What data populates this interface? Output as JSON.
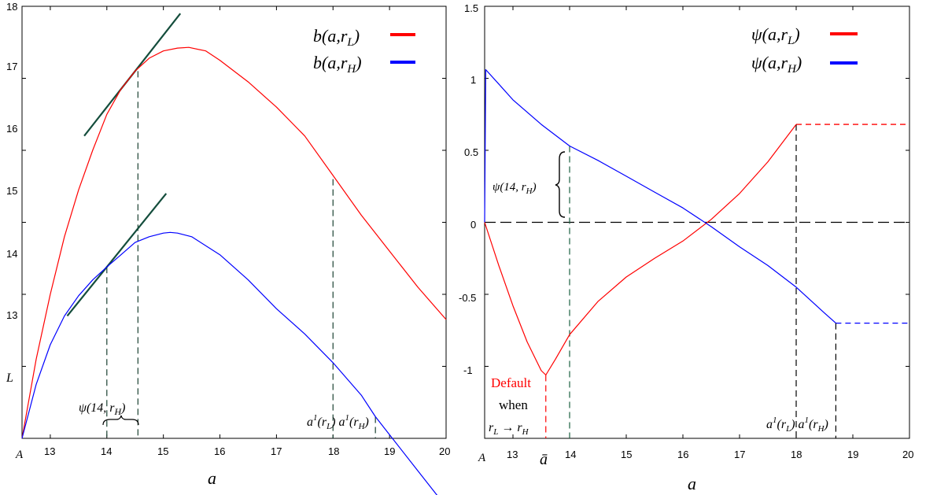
{
  "chart_data": [
    {
      "type": "line",
      "xlim": [
        12.5,
        20
      ],
      "ylim": [
        12,
        18
      ],
      "xticks": [
        "13",
        "14",
        "15",
        "16",
        "17",
        "18",
        "19",
        "20"
      ],
      "yticks": [
        "13",
        "14",
        "15",
        "16",
        "17",
        "18"
      ],
      "x_origin_label": "A",
      "y_origin_label": "L",
      "xlabel": "a",
      "legend": [
        "b(a,r_L)",
        "b(a,r_H)"
      ],
      "legend_position": "top-right",
      "series": [
        {
          "name": "b(a,r_L)",
          "color": "#ff0000",
          "x": [
            12.5,
            12.75,
            13,
            13.25,
            13.5,
            13.75,
            14,
            14.25,
            14.5,
            14.75,
            15,
            15.25,
            15.45,
            15.75,
            16,
            16.5,
            17,
            17.5,
            18,
            18.5,
            19,
            19.5,
            20
          ],
          "y": [
            12.0,
            13.1,
            14.0,
            14.8,
            15.45,
            16.0,
            16.5,
            16.85,
            17.1,
            17.28,
            17.38,
            17.42,
            17.43,
            17.38,
            17.25,
            16.95,
            16.6,
            16.2,
            15.65,
            15.1,
            14.6,
            14.1,
            13.65
          ]
        },
        {
          "name": "b(a,r_H)",
          "color": "#0000ff",
          "x": [
            12.5,
            12.75,
            13,
            13.25,
            13.5,
            13.75,
            14,
            14.25,
            14.5,
            14.75,
            15,
            15.12,
            15.25,
            15.5,
            16,
            16.5,
            17,
            17.5,
            18,
            18.5,
            18.75,
            19,
            19.5,
            20
          ],
          "y": [
            12.0,
            12.75,
            13.3,
            13.7,
            13.98,
            14.2,
            14.38,
            14.55,
            14.72,
            14.8,
            14.85,
            14.86,
            14.85,
            14.8,
            14.55,
            14.2,
            13.8,
            13.45,
            13.05,
            12.6,
            12.3,
            12.05,
            11.55,
            11.05
          ]
        }
      ],
      "tangent_lines": [
        {
          "x": [
            13.6,
            15.3
          ],
          "y": [
            16.2,
            17.9
          ]
        },
        {
          "x": [
            13.3,
            15.05
          ],
          "y": [
            13.7,
            15.4
          ]
        }
      ],
      "dashed_guides": [
        {
          "x": 14.0,
          "y_top": 14.38
        },
        {
          "x": 14.55,
          "y_top": 17.1
        },
        {
          "x": 18.0,
          "y_top": 15.6
        },
        {
          "x": 18.75,
          "y_top": 12.3
        }
      ],
      "annotations": [
        {
          "text": "ψ(14, r_H)",
          "x": 14.2,
          "y": 11.6
        },
        {
          "text": "a¹(r_L) a¹(r_H)",
          "x": 18.4,
          "y": 11.35
        }
      ]
    },
    {
      "type": "line",
      "xlim": [
        12.5,
        20
      ],
      "ylim": [
        -1.5,
        1.5
      ],
      "xticks": [
        "13",
        "14",
        "15",
        "16",
        "17",
        "18",
        "19",
        "20"
      ],
      "yticks": [
        "-1",
        "-0.5",
        "0",
        "0.5",
        "1",
        "1.5"
      ],
      "x_origin_label": "A",
      "x_special_label": "ā",
      "xlabel": "a",
      "legend": [
        "ψ(a,r_L)",
        "ψ(a,r_H)"
      ],
      "legend_position": "top-right",
      "series": [
        {
          "name": "ψ(a,r_L)",
          "color": "#ff0000",
          "x": [
            12.5,
            12.75,
            13,
            13.25,
            13.5,
            13.58,
            13.75,
            14,
            14.5,
            15,
            15.5,
            16,
            16.5,
            17,
            17.5,
            18
          ],
          "y": [
            0.0,
            -0.3,
            -0.58,
            -0.83,
            -1.03,
            -1.06,
            -0.95,
            -0.78,
            -0.55,
            -0.38,
            -0.25,
            -0.13,
            0.02,
            0.2,
            0.42,
            0.68
          ]
        },
        {
          "name": "ψ(a,r_H)",
          "color": "#0000ff",
          "x": [
            12.5,
            12.52,
            12.75,
            13,
            13.5,
            14,
            14.5,
            15,
            15.5,
            16,
            16.5,
            17,
            17.5,
            18,
            18.5,
            18.7
          ],
          "y": [
            0.0,
            1.06,
            0.96,
            0.85,
            0.68,
            0.53,
            0.43,
            0.32,
            0.21,
            0.1,
            -0.03,
            -0.17,
            -0.3,
            -0.45,
            -0.63,
            -0.7
          ]
        }
      ],
      "dashed_extensions": [
        {
          "color": "#ff0000",
          "x": [
            18,
            20
          ],
          "y": [
            0.68,
            0.68
          ]
        },
        {
          "color": "#0000ff",
          "x": [
            18.7,
            20
          ],
          "y": [
            -0.7,
            -0.7
          ]
        },
        {
          "color": "#000000",
          "x": [
            12.5,
            20
          ],
          "y": [
            0,
            0
          ]
        }
      ],
      "dashed_guides": [
        {
          "x": 13.58,
          "y_top": -1.06,
          "color": "#ff0000"
        },
        {
          "x": 14.0,
          "y_top": 0.53,
          "color": "#1a6040"
        },
        {
          "x": 18.0,
          "y_top": 0.68,
          "color": "#000000"
        },
        {
          "x": 18.7,
          "y_top": -0.7,
          "color": "#000000"
        }
      ],
      "annotations": [
        {
          "text": "ψ(14, r_H)",
          "x": 13.2,
          "y": 0.28
        },
        {
          "text": "Default",
          "x": 13.05,
          "y": -1.12,
          "color": "#ff0000"
        },
        {
          "text": "when",
          "x": 13.2,
          "y": -1.35
        },
        {
          "text": "r_L → r_H",
          "x": 13.05,
          "y": -1.58
        },
        {
          "text": "a¹(r_L) a¹(r_H)",
          "x": 18.45,
          "y": -1.4
        }
      ]
    }
  ]
}
